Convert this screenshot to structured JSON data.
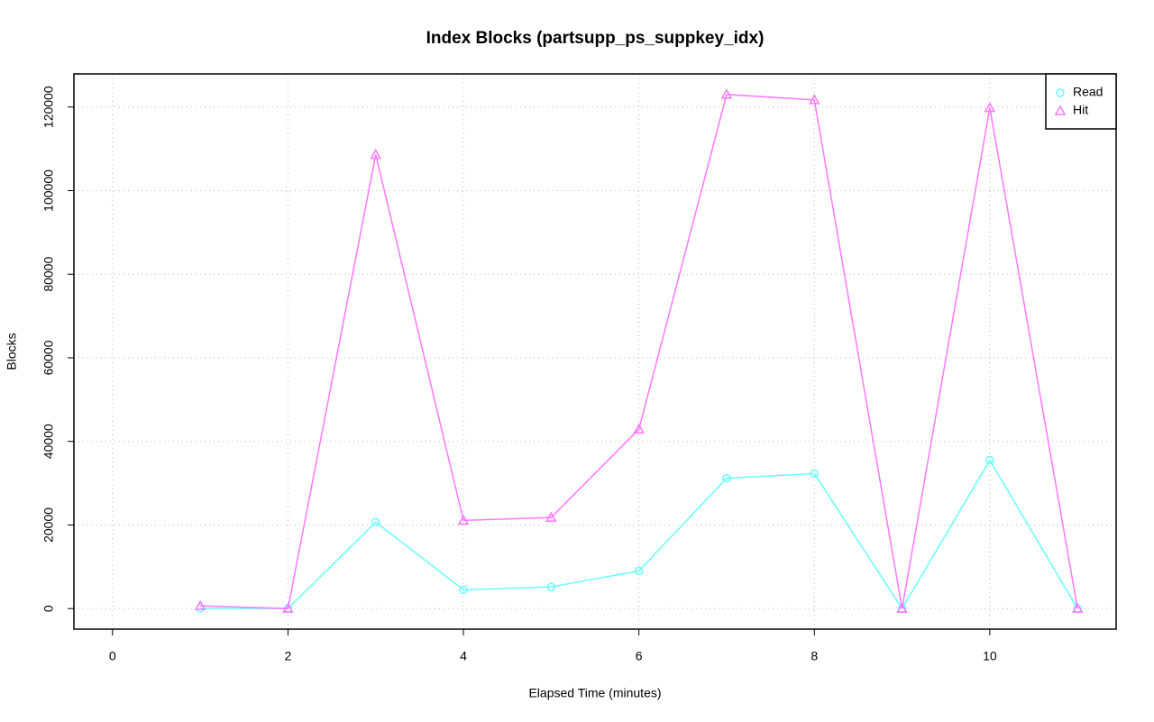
{
  "chart_data": {
    "type": "line",
    "title": "Index Blocks (partsupp_ps_suppkey_idx)",
    "x_label": "Elapsed Time (minutes)",
    "y_label": "Blocks",
    "x": [
      1,
      2,
      3,
      4,
      5,
      6,
      7,
      8,
      9,
      10,
      11
    ],
    "series": [
      {
        "name": "Read",
        "color": "#66ffff",
        "marker": "circle",
        "values": [
          0,
          0,
          20700,
          4500,
          5200,
          9000,
          31200,
          32300,
          0,
          35500,
          0
        ]
      },
      {
        "name": "Hit",
        "color": "#ff77ff",
        "marker": "triangle",
        "values": [
          650,
          0,
          108600,
          21100,
          21800,
          42900,
          123000,
          121700,
          0,
          119800,
          0
        ]
      }
    ],
    "xlim": [
      -0.44,
      11.44
    ],
    "xticks": [
      0,
      2,
      4,
      6,
      8,
      10
    ],
    "ylim": [
      -4920,
      127920
    ],
    "yticks": [
      0,
      20000,
      40000,
      60000,
      80000,
      100000,
      120000
    ],
    "grid": true,
    "legend": "top-right"
  }
}
